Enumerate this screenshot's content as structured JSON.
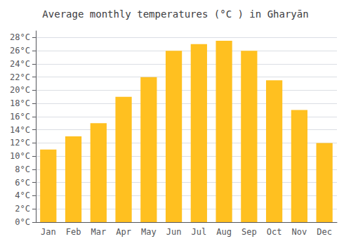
{
  "chart_data": {
    "type": "bar",
    "title": "Average monthly temperatures (°C ) in Gharyān",
    "categories": [
      "Jan",
      "Feb",
      "Mar",
      "Apr",
      "May",
      "Jun",
      "Jul",
      "Aug",
      "Sep",
      "Oct",
      "Nov",
      "Dec"
    ],
    "values": [
      11,
      13,
      15,
      19,
      22,
      26,
      27,
      27.5,
      26,
      21.5,
      17,
      12
    ],
    "color": "#FFC020",
    "ylim": [
      0,
      29
    ],
    "yticks": [
      {
        "value": 0,
        "label": "0°C"
      },
      {
        "value": 2,
        "label": "2°C"
      },
      {
        "value": 4,
        "label": "4°C"
      },
      {
        "value": 6,
        "label": "6°C"
      },
      {
        "value": 8,
        "label": "8°C"
      },
      {
        "value": 10,
        "label": "10°C"
      },
      {
        "value": 12,
        "label": "12°C"
      },
      {
        "value": 14,
        "label": "14°C"
      },
      {
        "value": 16,
        "label": "16°C"
      },
      {
        "value": 18,
        "label": "18°C"
      },
      {
        "value": 20,
        "label": "20°C"
      },
      {
        "value": 22,
        "label": "22°C"
      },
      {
        "value": 24,
        "label": "24°C"
      },
      {
        "value": 26,
        "label": "26°C"
      },
      {
        "value": 28,
        "label": "28°C"
      }
    ],
    "grid": true
  }
}
